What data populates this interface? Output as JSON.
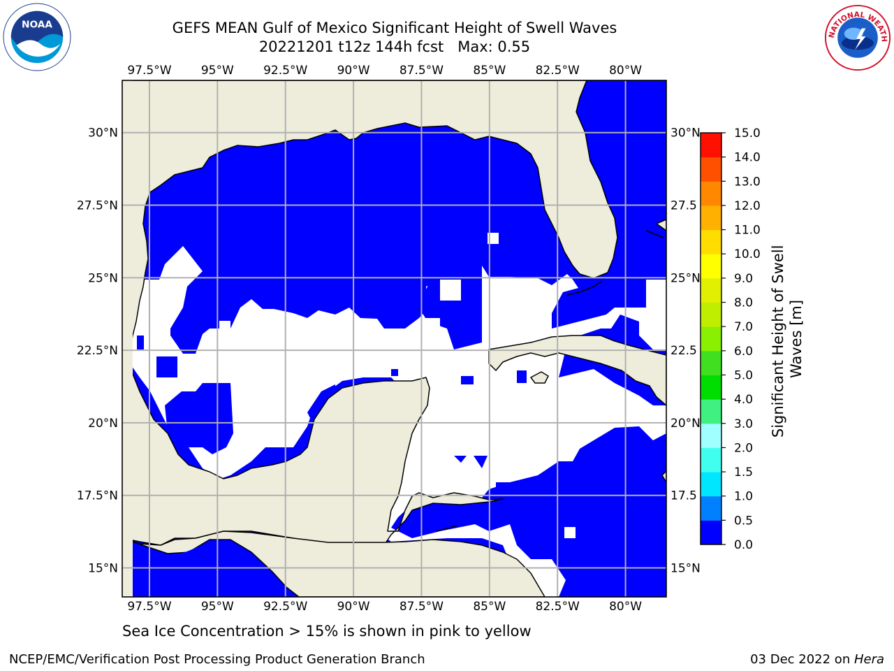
{
  "title_line1": "GEFS MEAN Gulf of Mexico Significant Height of Swell Waves",
  "title_line2": "20221201 t12z 144h fcst   Max: 0.55",
  "logos": {
    "left": "noaa-logo",
    "right": "nws-logo",
    "right_text": "NATIONAL WEATHER SERVICE",
    "left_text": "NOAA"
  },
  "map": {
    "lon_range": [
      -98.5,
      -78.5
    ],
    "lat_range": [
      14,
      31.8
    ],
    "lon_ticks": [
      "97.5°W",
      "95°W",
      "92.5°W",
      "90°W",
      "87.5°W",
      "85°W",
      "82.5°W",
      "80°W"
    ],
    "lon_tick_values": [
      -97.5,
      -95,
      -92.5,
      -90,
      -87.5,
      -85,
      -82.5,
      -80
    ],
    "lat_ticks": [
      "30°N",
      "27.5°N",
      "25°N",
      "22.5°N",
      "20°N",
      "17.5°N",
      "15°N"
    ],
    "lat_tick_values": [
      30,
      27.5,
      25,
      22.5,
      20,
      17.5,
      15
    ],
    "lat_ticks_right": [
      "30°N",
      "27.5",
      "25°N",
      "22.5",
      "20°N",
      "17.5",
      "15°N"
    ],
    "land_color": "#eeeddc",
    "low_swell_color": "#0000ff",
    "mid_swell_color": "#0080ff",
    "nodata_color": "#ffffff",
    "grid": true
  },
  "colorbar": {
    "label": "Significant Height of Swell Waves [m]",
    "label_line1": "Significant Height of Swell",
    "label_line2": "Waves [m]",
    "tick_labels": [
      "0.0",
      "0.5",
      "1.0",
      "1.5",
      "2.0",
      "3.0",
      "4.0",
      "5.0",
      "6.0",
      "7.0",
      "8.0",
      "9.0",
      "10.0",
      "11.0",
      "12.0",
      "13.0",
      "14.0",
      "15.0"
    ],
    "colors": [
      "#0000ff",
      "#0080ff",
      "#00e6ff",
      "#40ffee",
      "#a0ffff",
      "#40f080",
      "#00dd00",
      "#40e020",
      "#88f000",
      "#c0ee00",
      "#e0f000",
      "#ffff00",
      "#ffdd00",
      "#ffb000",
      "#ff8800",
      "#ff5000",
      "#ff1000"
    ]
  },
  "ice_note": "Sea Ice Concentration > 15% is shown in pink to yellow",
  "footer_left": "NCEP/EMC/Verification Post Processing Product Generation Branch",
  "footer_date": "03 Dec 2022 on ",
  "footer_machine": "Hera"
}
